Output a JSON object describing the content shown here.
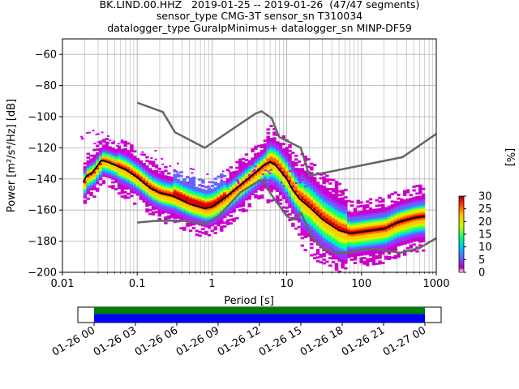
{
  "title": {
    "line1": "BK.LIND.00.HHZ   2019-01-25 -- 2019-01-26  (47/47 segments)",
    "line2": "sensor_type CMG-3T sensor_sn T310034",
    "line3": "datalogger_type GuralpMinimus+ datalogger_sn MINP-DF59"
  },
  "chart_data": [
    {
      "type": "heatmap",
      "xlabel": "Period [s]",
      "ylabel": "Power [m²/s⁴/Hz] [dB]",
      "xscale": "log",
      "xlim": [
        0.01,
        1000
      ],
      "ylim": [
        -200,
        -50
      ],
      "x_ticks": [
        0.01,
        0.1,
        1,
        10,
        100,
        1000
      ],
      "x_tick_labels": [
        "0.01",
        "0.1",
        "1",
        "10",
        "100",
        "1000"
      ],
      "y_ticks": [
        -200,
        -180,
        -160,
        -140,
        -120,
        -100,
        -80,
        -60
      ],
      "y_tick_labels": [
        "−200",
        "−180",
        "−160",
        "−140",
        "−120",
        "−100",
        "−80",
        "−60"
      ],
      "grid": true,
      "colorbar": {
        "label": "[%]",
        "min": 0,
        "max": 30,
        "ticks": [
          0,
          5,
          10,
          15,
          20,
          25,
          30
        ],
        "tick_labels": [
          "0",
          "5",
          "10",
          "15",
          "20",
          "25",
          "30"
        ]
      },
      "mode_curve": [
        [
          0.019,
          -142
        ],
        [
          0.021,
          -138
        ],
        [
          0.025,
          -136
        ],
        [
          0.03,
          -131
        ],
        [
          0.033,
          -128
        ],
        [
          0.04,
          -129
        ],
        [
          0.05,
          -131
        ],
        [
          0.07,
          -134
        ],
        [
          0.1,
          -139
        ],
        [
          0.15,
          -146
        ],
        [
          0.2,
          -149
        ],
        [
          0.3,
          -151
        ],
        [
          0.5,
          -156
        ],
        [
          0.8,
          -159
        ],
        [
          1.0,
          -158
        ],
        [
          1.5,
          -152
        ],
        [
          2,
          -147
        ],
        [
          3,
          -140
        ],
        [
          4,
          -135
        ],
        [
          5,
          -131
        ],
        [
          6,
          -129
        ],
        [
          7,
          -131
        ],
        [
          8,
          -134
        ],
        [
          10,
          -140
        ],
        [
          12,
          -147
        ],
        [
          15,
          -153
        ],
        [
          20,
          -158
        ],
        [
          30,
          -166
        ],
        [
          40,
          -170
        ],
        [
          50,
          -173
        ],
        [
          70,
          -175
        ],
        [
          100,
          -174
        ],
        [
          200,
          -172
        ],
        [
          300,
          -168
        ],
        [
          500,
          -165
        ],
        [
          700,
          -164
        ]
      ],
      "nhnm": [
        [
          0.1,
          -91
        ],
        [
          0.22,
          -97
        ],
        [
          0.32,
          -110
        ],
        [
          0.8,
          -120
        ],
        [
          3.8,
          -98
        ],
        [
          4.6,
          -96.5
        ],
        [
          6.3,
          -101
        ],
        [
          7.9,
          -113
        ],
        [
          15.4,
          -120
        ],
        [
          20,
          -138
        ],
        [
          354.8,
          -126
        ],
        [
          1000,
          -111
        ]
      ],
      "nlnm": [
        [
          0.1,
          -168
        ],
        [
          0.17,
          -167
        ],
        [
          0.4,
          -166.7
        ],
        [
          0.8,
          -169
        ],
        [
          1.24,
          -163.7
        ],
        [
          2.4,
          -148.6
        ],
        [
          4.3,
          -141.1
        ],
        [
          5,
          -141.1
        ],
        [
          6,
          -149
        ],
        [
          10,
          -163.8
        ],
        [
          12,
          -166.2
        ],
        [
          15.6,
          -162.1
        ],
        [
          21.9,
          -177.5
        ],
        [
          31.6,
          -185
        ],
        [
          45,
          -187.5
        ],
        [
          70,
          -187.5
        ],
        [
          101,
          -185
        ],
        [
          154,
          -185
        ],
        [
          328,
          -187.5
        ],
        [
          600,
          -184.4
        ],
        [
          1000,
          -178
        ]
      ],
      "density_scatter": [
        [
          0.02,
          -115
        ],
        [
          0.025,
          -112
        ],
        [
          0.03,
          -110
        ],
        [
          0.04,
          -112
        ],
        [
          0.05,
          -115
        ],
        [
          0.07,
          -118
        ],
        [
          0.1,
          -122
        ],
        [
          0.15,
          -127
        ],
        [
          0.2,
          -131
        ],
        [
          0.3,
          -134
        ],
        [
          0.5,
          -136
        ],
        [
          0.8,
          -140
        ],
        [
          1.5,
          -138
        ],
        [
          2,
          -139
        ],
        [
          3,
          -135
        ],
        [
          4,
          -135
        ],
        [
          5,
          -136
        ],
        [
          6,
          -137
        ],
        [
          8,
          -137
        ],
        [
          10,
          -139
        ],
        [
          15,
          -141
        ]
      ]
    },
    {
      "type": "timeline",
      "xlim": [
        "01-26 00",
        "01-27 00"
      ],
      "tick_labels": [
        "01-26 00",
        "01-26 03",
        "01-26 06",
        "01-26 09",
        "01-26 12",
        "01-26 15",
        "01-26 18",
        "01-26 21",
        "01-27 00"
      ],
      "data_coverage": [
        0,
        1
      ],
      "gap_coverage": [
        0,
        1
      ],
      "colors": {
        "data": "#008000",
        "gaps": "#0000ff"
      }
    }
  ],
  "colors": {
    "mode": "#000000",
    "noise_model": "#666666",
    "grid": "#b0b0b0"
  }
}
